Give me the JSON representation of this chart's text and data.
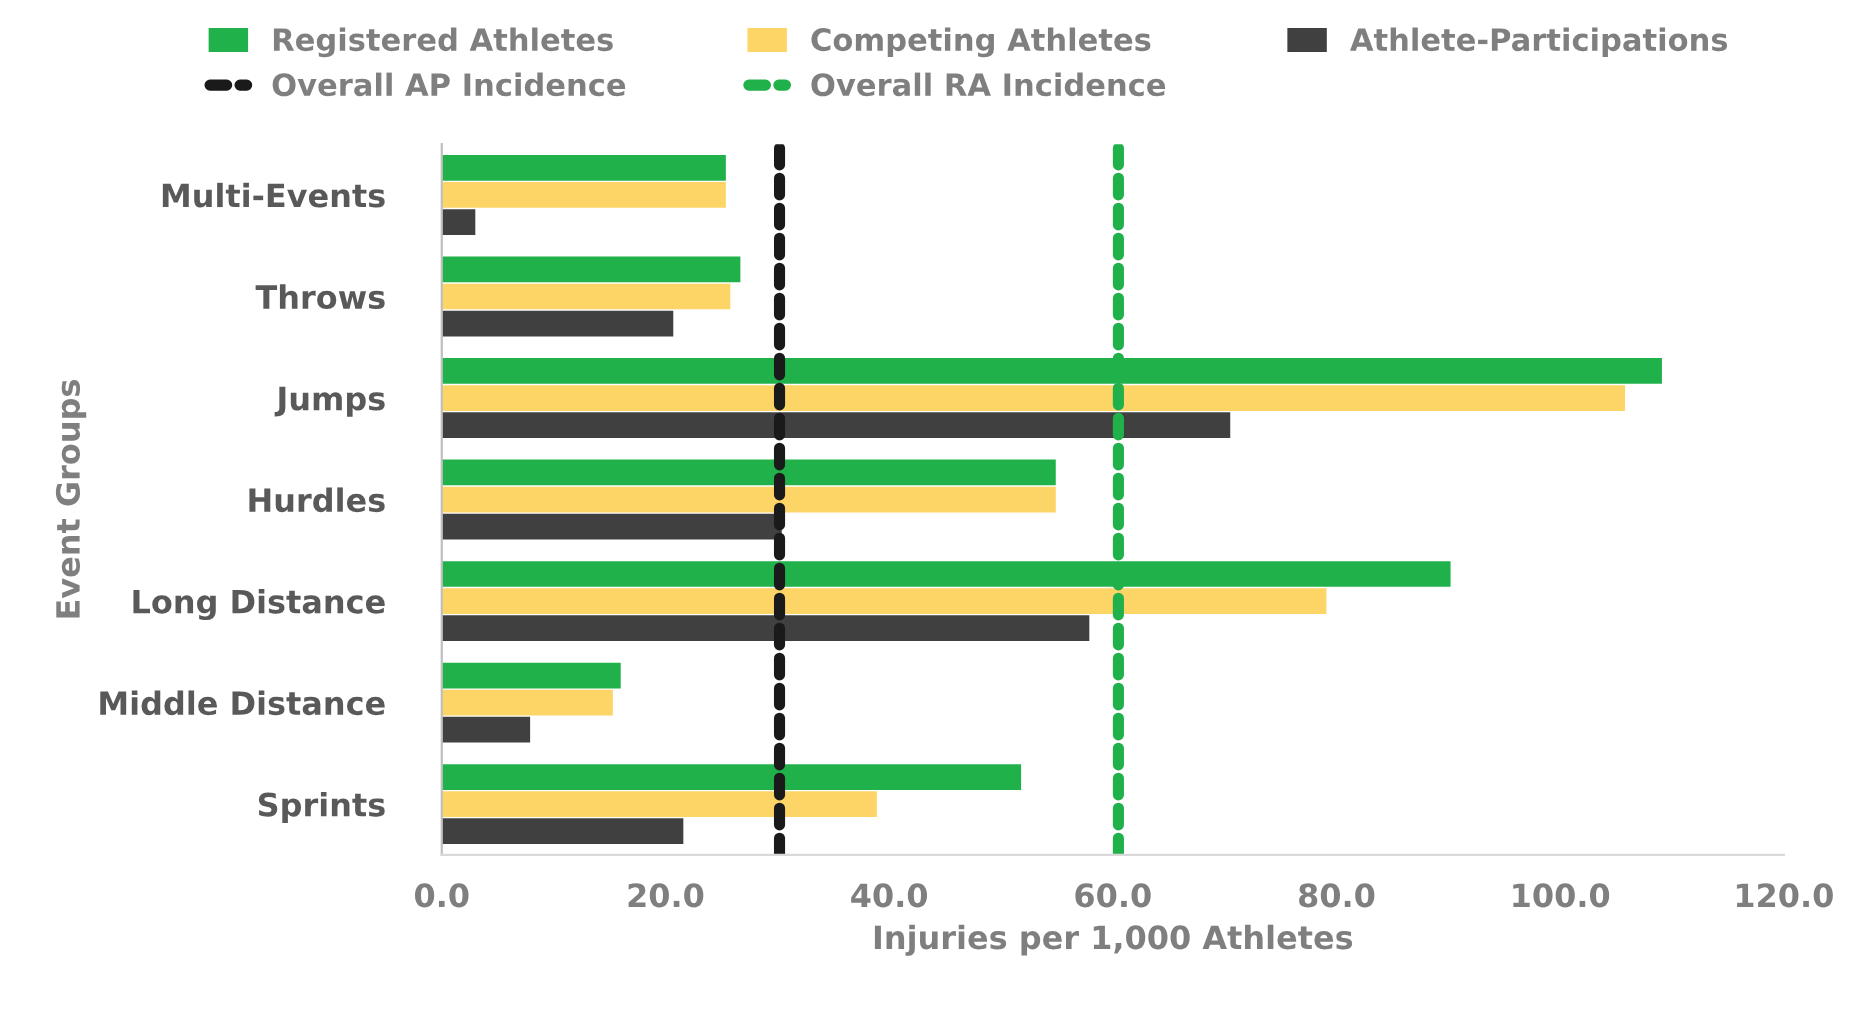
{
  "chart_data": {
    "type": "bar",
    "orientation": "horizontal",
    "xlabel": "Injuries per 1,000 Athletes",
    "ylabel": "Event Groups",
    "categories": [
      "Multi-Events",
      "Throws",
      "Jumps",
      "Hurdles",
      "Long Distance",
      "Middle Distance",
      "Sprints"
    ],
    "series": [
      {
        "name": "Registered Athletes",
        "color": "#21b14b",
        "values": [
          25.4,
          26.7,
          109.1,
          54.9,
          90.2,
          16.0,
          51.8
        ]
      },
      {
        "name": "Competing Athletes",
        "color": "#fdd466",
        "values": [
          25.4,
          25.8,
          105.8,
          54.9,
          79.1,
          15.3,
          38.9
        ]
      },
      {
        "name": "Athlete-Participations",
        "color": "#404040",
        "values": [
          3.0,
          20.7,
          70.5,
          30.4,
          57.9,
          7.9,
          21.6
        ]
      }
    ],
    "ref_lines": [
      {
        "axis": "x",
        "value": 30.2,
        "label": "Overall AP Incidence",
        "color": "#1a1a1a",
        "line_style": "dashed"
      },
      {
        "axis": "x",
        "value": 60.5,
        "label": "Overall RA Incidence",
        "color": "#21b14b",
        "line_style": "dashed"
      }
    ],
    "xlim": [
      0,
      120
    ],
    "xticks": [
      {
        "value": 0,
        "label": "0.0"
      },
      {
        "value": 20,
        "label": "20.0"
      },
      {
        "value": 40,
        "label": "40.0"
      },
      {
        "value": 60,
        "label": "60.0"
      },
      {
        "value": 80,
        "label": "80.0"
      },
      {
        "value": 100,
        "label": "100.0"
      },
      {
        "value": 120,
        "label": "120.0"
      }
    ],
    "grid": false,
    "legend": "top"
  }
}
